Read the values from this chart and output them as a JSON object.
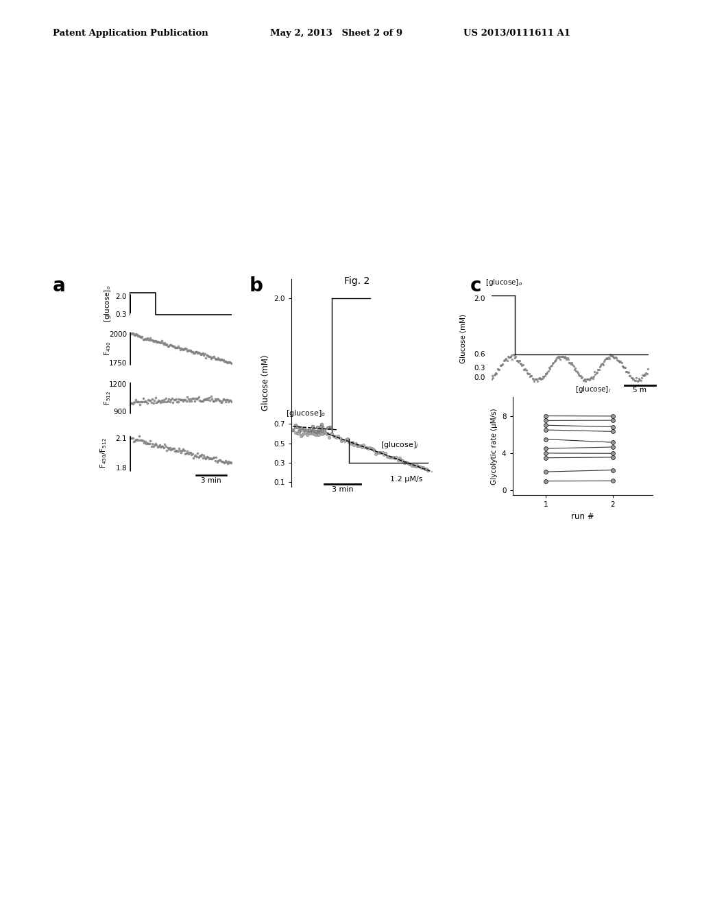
{
  "header_left": "Patent Application Publication",
  "header_mid": "May 2, 2013   Sheet 2 of 9",
  "header_right": "US 2013/0111611 A1",
  "fig_label": "Fig. 2",
  "panel_a_label": "a",
  "panel_b_label": "b",
  "panel_c_label": "c",
  "background_color": "#ffffff",
  "text_color": "#000000"
}
